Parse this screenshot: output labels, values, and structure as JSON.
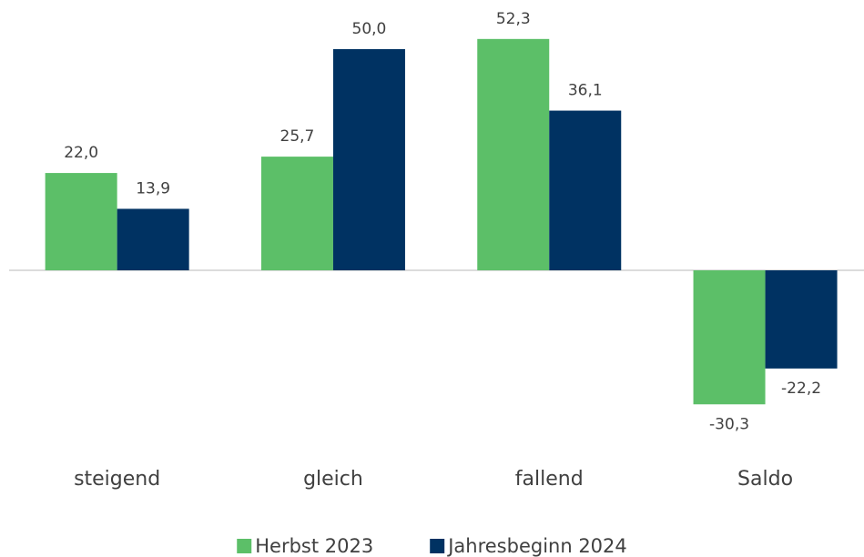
{
  "chart_data": {
    "type": "bar",
    "categories": [
      "steigend",
      "gleich",
      "fallend",
      "Saldo"
    ],
    "series": [
      {
        "name": "Herbst 2023",
        "color": "#5cbf68",
        "values": [
          22.0,
          25.7,
          52.3,
          -30.3
        ],
        "value_labels": [
          "22,0",
          "25,7",
          "52,3",
          "-30,3"
        ]
      },
      {
        "name": "Jahresbeginn 2024",
        "color": "#003262",
        "values": [
          13.9,
          50.0,
          36.1,
          -22.2
        ],
        "value_labels": [
          "13,9",
          "50,0",
          "36,1",
          "-22,2"
        ]
      }
    ],
    "ylim": [
      -40,
      60
    ],
    "legend": "bottom"
  }
}
